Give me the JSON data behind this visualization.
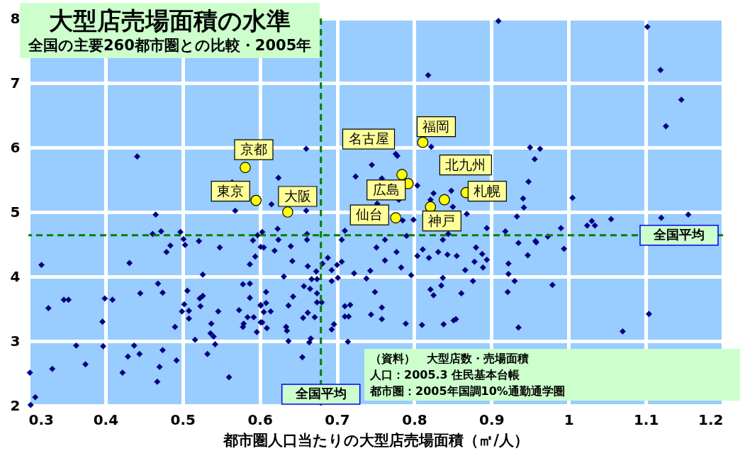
{
  "chart_data": {
    "type": "scatter",
    "title": "大型店売場面積の水準",
    "subtitle": "全国の主要260都市圏との比較・2005年",
    "xlabel": "都市圏人口当たりの大型店売場面積（㎡/人）",
    "xlim": [
      0.3,
      1.2
    ],
    "xticks": [
      0.3,
      0.4,
      0.5,
      0.6,
      0.7,
      0.8,
      0.9,
      1,
      1.1,
      1.2
    ],
    "ylim": [
      2,
      8
    ],
    "yticks": [
      2,
      3,
      4,
      5,
      6,
      7,
      8
    ],
    "grid": true,
    "series": [
      {
        "color": "#000080",
        "marker": "diamond",
        "x": [
          0.441,
          0.564,
          0.568,
          0.465,
          0.472,
          0.461,
          0.497,
          0.501,
          0.503,
          0.484,
          0.479,
          0.521,
          0.548,
          0.591,
          0.597,
          0.601,
          0.317,
          0.431,
          0.594,
          0.587,
          0.526,
          0.468,
          0.474,
          0.445,
          0.399,
          0.409,
          0.346,
          0.352,
          0.326,
          0.396,
          0.362,
          0.397,
          0.374,
          0.331,
          0.302,
          0.309,
          0.303,
          0.422,
          0.429,
          0.437,
          0.444,
          0.474,
          0.47,
          0.467,
          0.492,
          0.49,
          0.506,
          0.502,
          0.499,
          0.508,
          0.508,
          0.526,
          0.522,
          0.523,
          0.546,
          0.537,
          0.536,
          0.54,
          0.542,
          0.516,
          0.532,
          0.56,
          0.578,
          0.587,
          0.587,
          0.573,
          0.584,
          0.592,
          0.579,
          0.578,
          0.596,
          0.601,
          0.601,
          0.605,
          0.619,
          0.64,
          0.642,
          0.662,
          0.673,
          0.681,
          0.688,
          0.693,
          0.7,
          0.706,
          0.631,
          0.667,
          0.674,
          0.693,
          0.701,
          0.608,
          0.657,
          0.665,
          0.643,
          0.674,
          0.608,
          0.601,
          0.637,
          0.674,
          0.68,
          0.605,
          0.614,
          0.662,
          0.656,
          0.671,
          0.603,
          0.609,
          0.634,
          0.635,
          0.637,
          0.666,
          0.664,
          0.655,
          0.696,
          0.693,
          0.714,
          0.71,
          0.717,
          0.71,
          0.715,
          0.744,
          0.758,
          0.758,
          0.749,
          0.738,
          0.743,
          0.722,
          0.751,
          0.762,
          0.777,
          0.783,
          0.796,
          0.789,
          0.81,
          0.804,
          0.811,
          0.819,
          0.831,
          0.843,
          0.855,
          0.866,
          0.876,
          0.88,
          0.888,
          0.894,
          0.878,
          0.889,
          0.837,
          0.835,
          0.821,
          0.825,
          0.861,
          0.838,
          0.851,
          0.854,
          0.935,
          0.958,
          0.994,
          0.947,
          0.922,
          0.922,
          0.93,
          0.921,
          0.979,
          0.935,
          1.07,
          1.104,
          0.909,
          1.102,
          1.119,
          1.146,
          1.126,
          0.95,
          0.963,
          0.956,
          0.948,
          1.005,
          0.941,
          0.942,
          0.933,
          0.894,
          0.918,
          0.99,
          0.957,
          0.973,
          1.024,
          1.03,
          1.034,
          1.055,
          1.12,
          1.155,
          0.818,
          0.66,
          0.624,
          0.615,
          0.66,
          0.822,
          0.745,
          0.724,
          0.778,
          0.776,
          0.758,
          0.804,
          0.752,
          0.78,
          0.825,
          0.821,
          0.848,
          0.85,
          0.868,
          0.785,
          0.799,
          0.837,
          0.844,
          0.79,
          0.762,
          0.706,
          0.71,
          0.623,
          0.624,
          0.661,
          0.661,
          0.603
        ],
        "values": [
          5.86,
          5.46,
          5.02,
          4.96,
          4.7,
          4.66,
          4.69,
          4.58,
          4.49,
          4.48,
          4.38,
          4.55,
          4.45,
          4.56,
          4.64,
          4.46,
          4.18,
          4.21,
          4.31,
          4.19,
          4.03,
          3.89,
          3.75,
          3.74,
          3.66,
          3.64,
          3.64,
          3.64,
          3.51,
          3.3,
          2.93,
          2.92,
          2.64,
          2.57,
          2.51,
          2.13,
          2.01,
          2.51,
          2.76,
          2.93,
          2.8,
          2.86,
          2.6,
          2.37,
          2.7,
          3.22,
          3.78,
          3.57,
          3.46,
          3.47,
          3.35,
          3.7,
          3.66,
          3.54,
          3.46,
          3.27,
          3.12,
          3.07,
          2.95,
          3.02,
          2.8,
          2.44,
          3.88,
          3.89,
          3.67,
          3.48,
          3.37,
          3.37,
          3.27,
          3.22,
          3.14,
          3.56,
          3.29,
          4.45,
          4.4,
          4.47,
          4.24,
          4.16,
          4.08,
          4.2,
          4.29,
          4.1,
          4.18,
          4.23,
          4.0,
          3.96,
          3.96,
          3.93,
          3.98,
          3.76,
          3.85,
          3.81,
          3.69,
          3.74,
          3.59,
          3.55,
          3.55,
          3.6,
          3.6,
          3.45,
          3.46,
          3.44,
          3.36,
          3.37,
          3.29,
          3.2,
          3.22,
          3.16,
          3.0,
          3.04,
          2.98,
          2.75,
          3.26,
          3.18,
          2.99,
          3.54,
          3.56,
          3.38,
          3.38,
          3.41,
          3.52,
          3.34,
          3.76,
          3.97,
          4.09,
          4.05,
          4.45,
          4.25,
          4.38,
          4.14,
          4.02,
          3.27,
          3.25,
          4.32,
          4.42,
          4.29,
          4.38,
          4.34,
          4.32,
          4.1,
          3.93,
          4.45,
          4.35,
          4.26,
          4.23,
          4.14,
          3.98,
          3.86,
          3.8,
          3.71,
          3.74,
          3.26,
          3.32,
          3.34,
          4.52,
          4.53,
          4.43,
          4.33,
          4.2,
          4.04,
          3.93,
          3.76,
          3.87,
          3.21,
          3.15,
          3.42,
          7.96,
          7.87,
          7.2,
          6.74,
          6.33,
          6.0,
          5.98,
          5.82,
          5.47,
          5.22,
          5.21,
          5.07,
          4.93,
          4.75,
          4.7,
          4.75,
          4.55,
          4.62,
          4.79,
          4.86,
          4.79,
          4.89,
          4.91,
          4.96,
          7.12,
          5.98,
          5.53,
          5.12,
          5.02,
          6.01,
          5.73,
          5.55,
          5.87,
          5.9,
          5.52,
          5.41,
          5.13,
          5.19,
          5.29,
          5.19,
          5.33,
          5.08,
          4.97,
          4.87,
          4.88,
          4.57,
          4.66,
          4.63,
          4.57,
          4.57,
          4.71,
          4.74,
          4.57,
          4.66,
          4.57,
          4.69
        ]
      },
      {
        "color": "#ffff00",
        "marker": "circle",
        "x": [
          0.581,
          0.595,
          0.636,
          0.784,
          0.792,
          0.811,
          0.839,
          0.867,
          0.821,
          0.776
        ],
        "values": [
          5.69,
          5.18,
          5.0,
          5.58,
          5.44,
          6.08,
          5.19,
          5.3,
          5.08,
          4.91
        ]
      }
    ],
    "ref_lines": [
      {
        "axis": "x",
        "value": 0.679,
        "label": "全国平均",
        "color": "#008000",
        "line_style": "dashed"
      },
      {
        "axis": "y",
        "value": 4.64,
        "label": "全国平均",
        "color": "#008000",
        "line_style": "dashed"
      }
    ],
    "annotations": [
      {
        "text": "京都",
        "x": 0.581,
        "y": 5.69
      },
      {
        "text": "東京",
        "x": 0.595,
        "y": 5.18
      },
      {
        "text": "大阪",
        "x": 0.636,
        "y": 5.0
      },
      {
        "text": "名古屋",
        "x": 0.784,
        "y": 5.58
      },
      {
        "text": "広島",
        "x": 0.792,
        "y": 5.44
      },
      {
        "text": "福岡",
        "x": 0.811,
        "y": 6.08
      },
      {
        "text": "北九州",
        "x": 0.839,
        "y": 5.19
      },
      {
        "text": "札幌",
        "x": 0.867,
        "y": 5.3
      },
      {
        "text": "神戸",
        "x": 0.821,
        "y": 5.08
      },
      {
        "text": "仙台",
        "x": 0.776,
        "y": 4.91
      },
      "（資料）　大型店数・売場面積",
      "人口：2005.3 住民基本台帳",
      "都市圏：2005年国調10%通勤通学圏"
    ]
  }
}
